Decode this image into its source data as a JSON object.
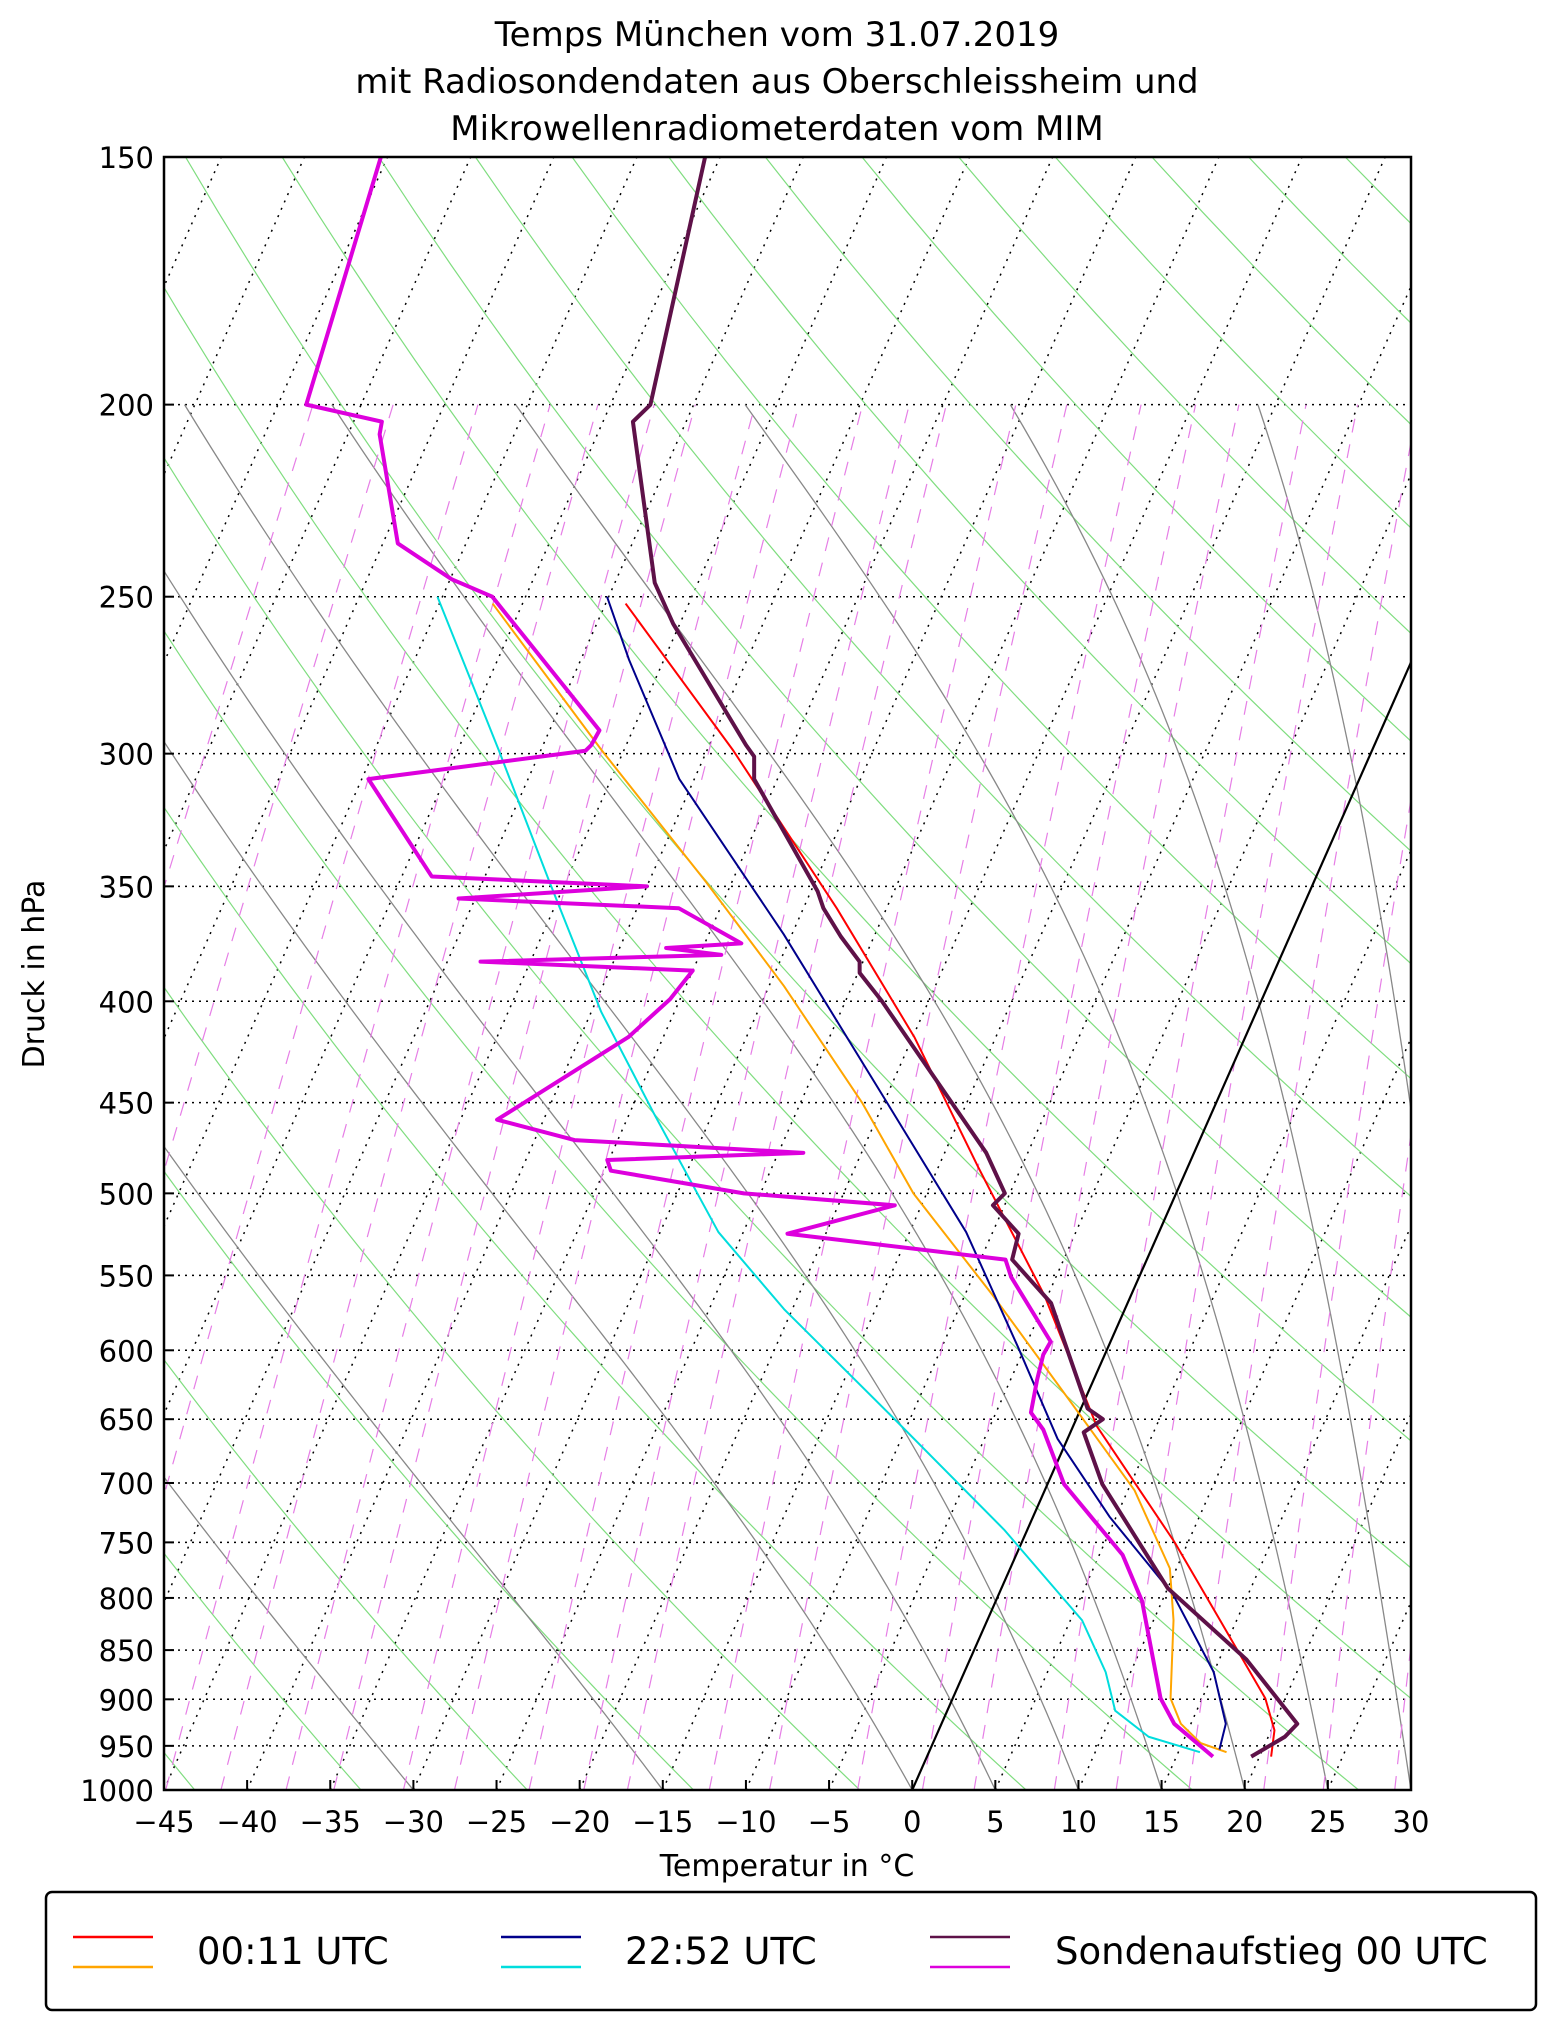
{
  "chart_data": {
    "type": "line",
    "subtype": "skew-T log-p diagram",
    "title": [
      "Temps München vom 31.07.2019",
      "mit Radiosondendaten aus Oberschleissheim und",
      "Mikrowellenradiometerdaten vom MIM"
    ],
    "xlabel": "Temperatur in °C",
    "ylabel": "Druck in hPa",
    "xlim": [
      -45,
      30
    ],
    "ylim": [
      1000,
      150
    ],
    "yscale": "log",
    "xticks": [
      -45,
      -40,
      -35,
      -30,
      -25,
      -20,
      -15,
      -10,
      -5,
      0,
      5,
      10,
      15,
      20,
      25,
      30
    ],
    "yticks": [
      1000,
      950,
      900,
      850,
      800,
      750,
      700,
      650,
      600,
      550,
      500,
      450,
      400,
      350,
      300,
      250,
      200,
      150
    ],
    "legend_position": "bottom",
    "legend_groups": [
      {
        "label": "00:11 UTC",
        "colors": [
          "#ff0000",
          "#ffa500"
        ]
      },
      {
        "label": "22:52 UTC",
        "colors": [
          "#00008b",
          "#00dddd"
        ]
      },
      {
        "label": "Sondenaufstieg 00 UTC",
        "colors": [
          "#5e1148",
          "#dd00dd"
        ]
      }
    ],
    "series": [
      {
        "name": "00:11 UTC temperature",
        "color": "#ff0000",
        "width": 2,
        "p": [
          252,
          299,
          359,
          417,
          485,
          563,
          655,
          750,
          821,
          899,
          933,
          962
        ],
        "T": [
          -48.8,
          -38.4,
          -28.0,
          -19.9,
          -12.6,
          -5.2,
          1.4,
          9.2,
          14.0,
          18.8,
          20.2,
          20.7
        ]
      },
      {
        "name": "00:11 UTC dewpoint",
        "color": "#ffa500",
        "width": 2,
        "p": [
          252,
          299,
          348,
          393,
          450,
          500,
          563,
          636,
          706,
          773,
          821,
          899,
          926,
          947,
          957
        ],
        "T": [
          -56.8,
          -46.3,
          -36.6,
          -29.1,
          -21.3,
          -15.8,
          -8.3,
          -0.9,
          5.4,
          9.6,
          11.2,
          13.1,
          14.4,
          16.1,
          17.9
        ]
      },
      {
        "name": "22:52 UTC temperature",
        "color": "#00008b",
        "width": 2,
        "p": [
          250,
          269,
          309,
          370,
          450,
          523,
          598,
          665,
          728,
          797,
          872,
          926,
          954
        ],
        "T": [
          -50.1,
          -47.1,
          -40.9,
          -30.5,
          -19.8,
          -11.6,
          -5.4,
          -0.6,
          4.6,
          10.5,
          15.0,
          17.1,
          17.4
        ]
      },
      {
        "name": "22:52 UTC dewpoint",
        "color": "#00dddd",
        "width": 2,
        "p": [
          250,
          299,
          348,
          405,
          456,
          523,
          572,
          645,
          739,
          821,
          872,
          912,
          940,
          957
        ],
        "T": [
          -60.3,
          -52.5,
          -46.0,
          -39.4,
          -33.5,
          -26.5,
          -20.5,
          -11.5,
          -1.4,
          5.7,
          8.5,
          10.1,
          12.8,
          16.3
        ]
      },
      {
        "name": "Sondenaufstieg 00 UTC temperature",
        "color": "#5e1148",
        "width": 4,
        "p": [
          150,
          200,
          204,
          246,
          258,
          297,
          301,
          309,
          352,
          359,
          371,
          382,
          387,
          400,
          477,
          500,
          507,
          524,
          540,
          568,
          642,
          650,
          660,
          701,
          791,
          859,
          926,
          940,
          962
        ],
        "T": [
          -55.9,
          -52.6,
          -53.2,
          -47.6,
          -45.4,
          -37.8,
          -37.0,
          -36.4,
          -29.6,
          -28.8,
          -27.0,
          -25.2,
          -24.9,
          -22.8,
          -12.5,
          -10.3,
          -10.7,
          -8.4,
          -8.1,
          -4.6,
          0.4,
          1.6,
          0.8,
          3.3,
          10.0,
          16.6,
          21.4,
          21.0,
          19.5
        ]
      },
      {
        "name": "Sondenaufstieg 00 UTC dewpoint",
        "color": "#dd00dd",
        "width": 4,
        "p": [
          150,
          200,
          204,
          207,
          235,
          245,
          250,
          292,
          297,
          299,
          309,
          346,
          350,
          355,
          359,
          374,
          376,
          379,
          382,
          386,
          399,
          417,
          459,
          470,
          477,
          481,
          487,
          500,
          507,
          524,
          540,
          551,
          594,
          603,
          621,
          645,
          658,
          701,
          761,
          803,
          899,
          926,
          962
        ],
        "T": [
          -75.4,
          -73.3,
          -68.3,
          -68.1,
          -64.1,
          -59.9,
          -57.0,
          -47.0,
          -47.1,
          -47.3,
          -59.6,
          -53.2,
          -40.0,
          -51.0,
          -37.5,
          -32.8,
          -37.2,
          -33.7,
          -48.0,
          -35.0,
          -35.6,
          -37.1,
          -42.8,
          -37.6,
          -23.5,
          -35.1,
          -34.6,
          -26.0,
          -16.6,
          -22.3,
          -8.5,
          -7.7,
          -3.6,
          -3.7,
          -3.4,
          -2.9,
          -1.7,
          1.0,
          6.4,
          8.8,
          12.5,
          14.0,
          17.2
        ]
      }
    ]
  }
}
